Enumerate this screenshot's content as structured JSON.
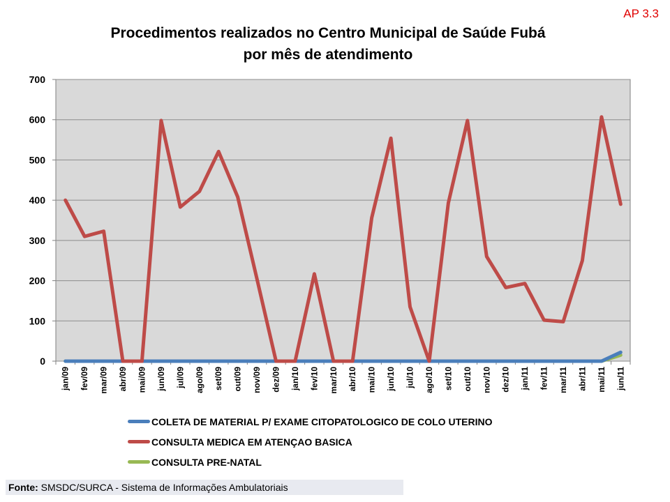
{
  "tag": "AP 3.3",
  "chart_data": {
    "type": "line",
    "title_line1": "Procedimentos realizados no Centro Municipal de Saúde Fubá",
    "title_line2": "por mês de atendimento",
    "categories": [
      "jan/09",
      "fev/09",
      "mar/09",
      "abr/09",
      "mai/09",
      "jun/09",
      "jul/09",
      "ago/09",
      "set/09",
      "out/09",
      "nov/09",
      "dez/09",
      "jan/10",
      "fev/10",
      "mar/10",
      "abr/10",
      "mai/10",
      "jun/10",
      "jul/10",
      "ago/10",
      "set/10",
      "out/10",
      "nov/10",
      "dez/10",
      "jan/11",
      "fev/11",
      "mar/11",
      "abr/11",
      "mai/11",
      "jun/11"
    ],
    "ylim": [
      0,
      700
    ],
    "yticks": [
      0,
      100,
      200,
      300,
      400,
      500,
      600,
      700
    ],
    "grid": true,
    "legend_position": "bottom",
    "series": [
      {
        "name": "COLETA DE MATERIAL P/ EXAME CITOPATOLOGICO DE COLO UTERINO",
        "color": "#4a7ebb",
        "values": [
          0,
          0,
          0,
          0,
          0,
          0,
          0,
          0,
          0,
          0,
          0,
          0,
          0,
          0,
          0,
          0,
          0,
          0,
          0,
          0,
          0,
          0,
          0,
          0,
          0,
          0,
          0,
          0,
          0,
          22
        ]
      },
      {
        "name": "CONSULTA MEDICA EM ATENÇAO BASICA",
        "color": "#be4b48",
        "values": [
          400,
          310,
          323,
          0,
          0,
          598,
          383,
          422,
          521,
          408,
          205,
          0,
          0,
          217,
          0,
          0,
          356,
          554,
          135,
          0,
          393,
          598,
          260,
          183,
          193,
          102,
          98,
          250,
          607,
          390
        ]
      },
      {
        "name": "CONSULTA PRE-NATAL",
        "color": "#98b954",
        "values": [
          0,
          0,
          0,
          0,
          0,
          0,
          0,
          0,
          0,
          0,
          0,
          0,
          0,
          0,
          0,
          0,
          0,
          0,
          0,
          0,
          0,
          0,
          0,
          0,
          0,
          0,
          0,
          0,
          0,
          15
        ]
      }
    ]
  },
  "source": {
    "label": "Fonte:",
    "text": " SMSDC/SURCA - Sistema de Informações Ambulatoriais"
  }
}
